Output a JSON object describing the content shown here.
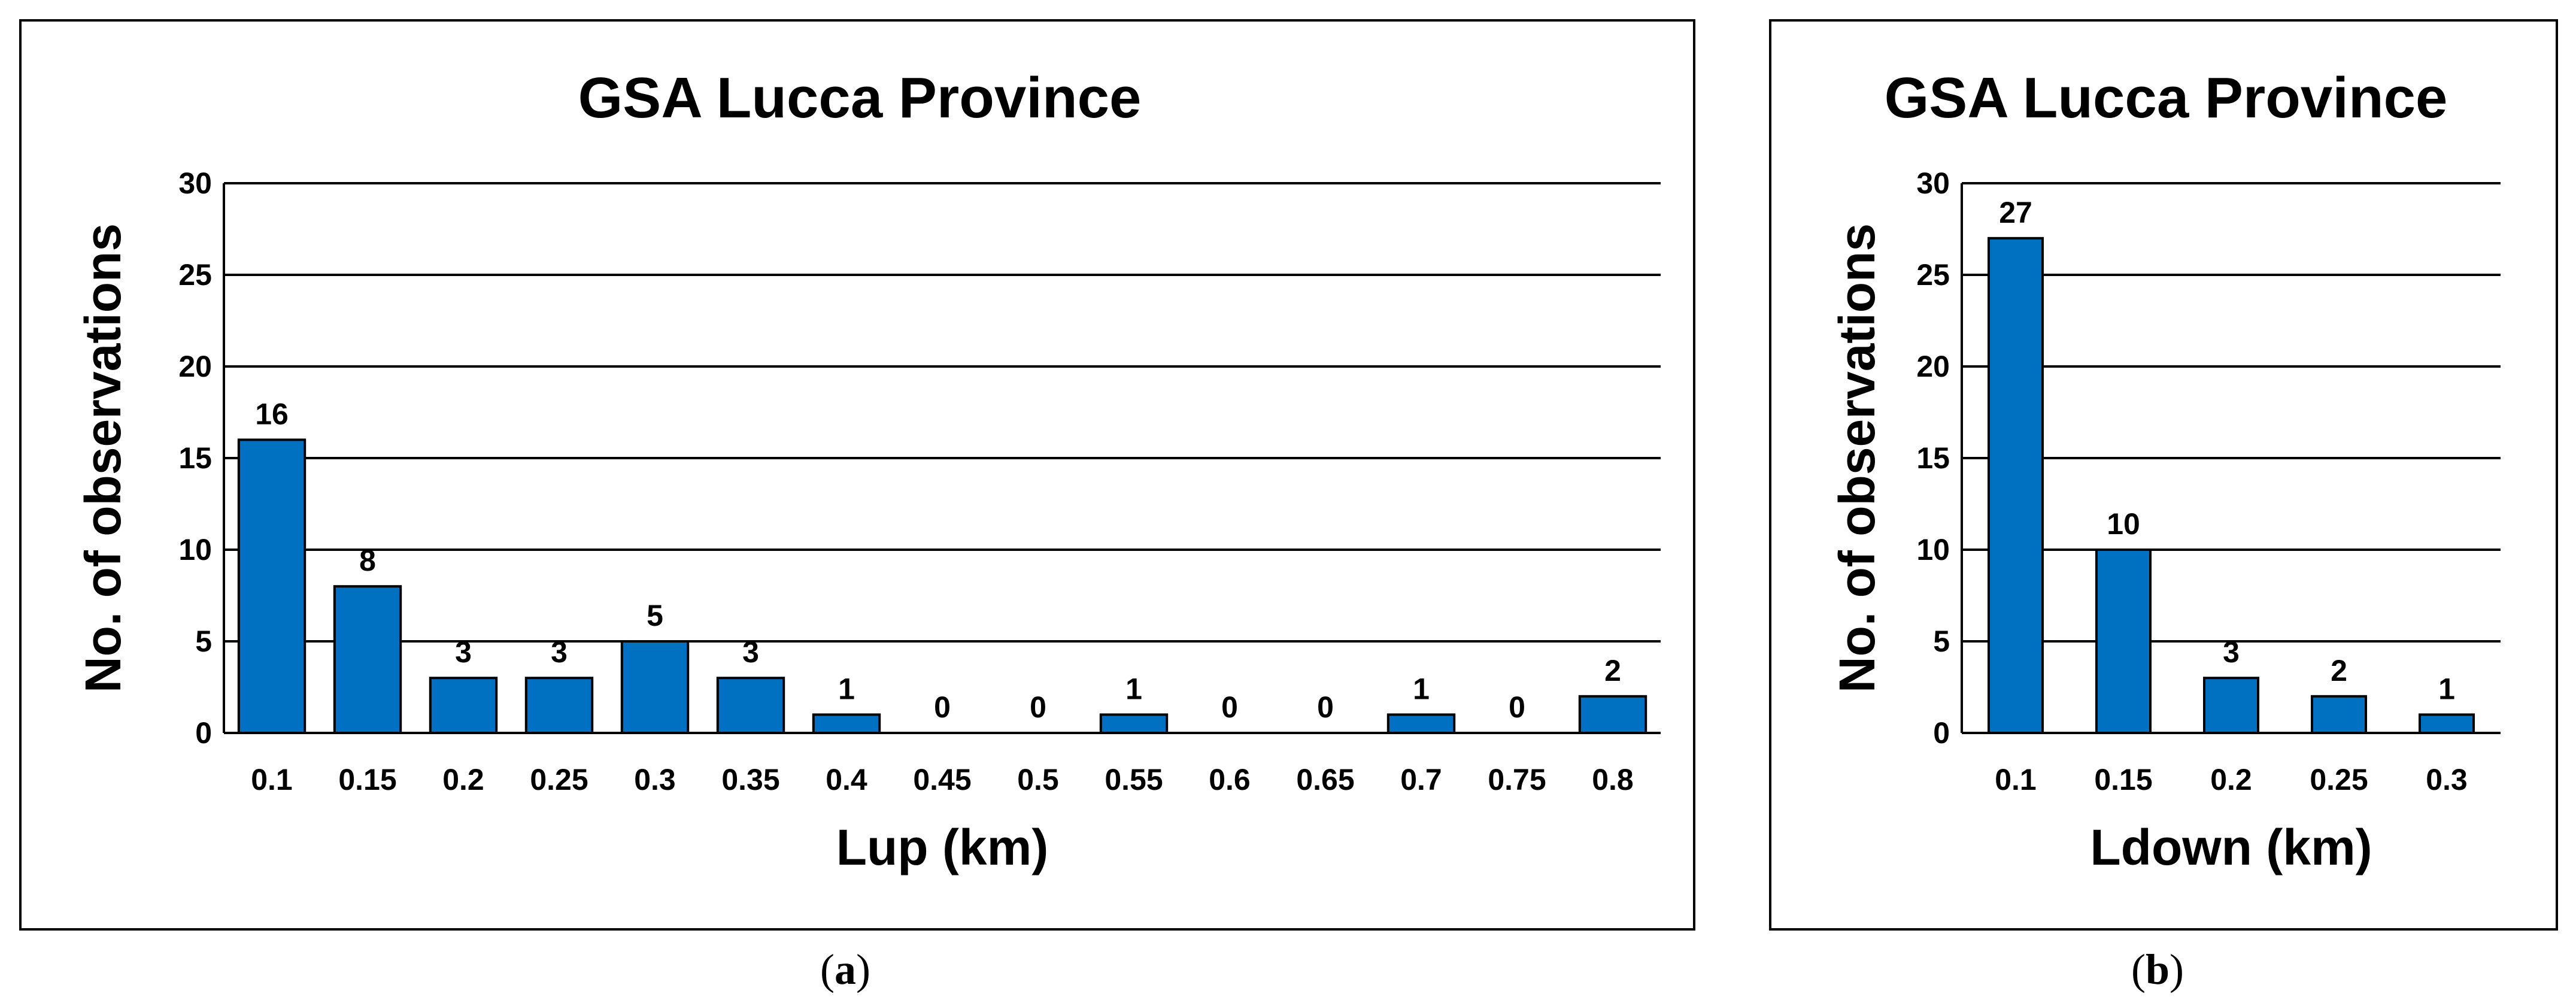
{
  "colors": {
    "bar": "#0070c0",
    "grid": "#000000",
    "text": "#000000"
  },
  "chart_data": [
    {
      "type": "bar",
      "title": "GSA Lucca Province",
      "xlabel": "Lup (km)",
      "ylabel": "No. of observations",
      "ylim": [
        0,
        30
      ],
      "yticks": [
        "0",
        "5",
        "10",
        "15",
        "20",
        "25",
        "30"
      ],
      "grid": true,
      "categories": [
        "0.1",
        "0.15",
        "0.2",
        "0.25",
        "0.3",
        "0.35",
        "0.4",
        "0.45",
        "0.5",
        "0.55",
        "0.6",
        "0.65",
        "0.7",
        "0.75",
        "0.8"
      ],
      "values": [
        16,
        8,
        3,
        3,
        5,
        3,
        1,
        0,
        0,
        1,
        0,
        0,
        1,
        0,
        2
      ],
      "data_labels": [
        "16",
        "8",
        "3",
        "3",
        "5",
        "3",
        "1",
        "0",
        "0",
        "1",
        "0",
        "0",
        "1",
        "0",
        "2"
      ],
      "caption": "a"
    },
    {
      "type": "bar",
      "title": "GSA Lucca Province",
      "xlabel": "Ldown (km)",
      "ylabel": "No. of observations",
      "ylim": [
        0,
        30
      ],
      "yticks": [
        "0",
        "5",
        "10",
        "15",
        "20",
        "25",
        "30"
      ],
      "grid": true,
      "categories": [
        "0.1",
        "0.15",
        "0.2",
        "0.25",
        "0.3"
      ],
      "values": [
        27,
        10,
        3,
        2,
        1
      ],
      "data_labels": [
        "27",
        "10",
        "3",
        "2",
        "1"
      ],
      "caption": "b"
    }
  ]
}
